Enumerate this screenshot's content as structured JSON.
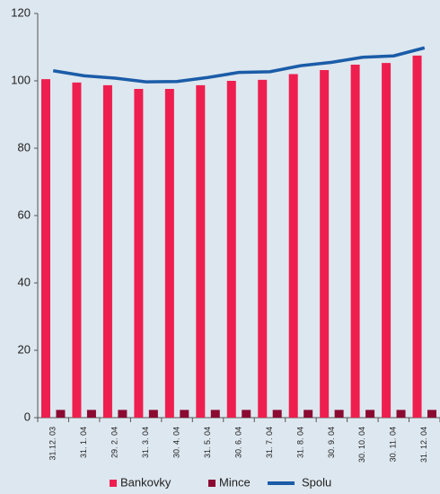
{
  "chart_data": {
    "type": "bar",
    "categories": [
      "31.12. 03",
      "31. 1. 04",
      "29. 2. 04",
      "31. 3. 04",
      "30. 4. 04",
      "31. 5. 04",
      "30. 6. 04",
      "31. 7. 04",
      "31. 8. 04",
      "30. 9. 04",
      "30. 10. 04",
      "30. 11. 04",
      "31. 12. 04"
    ],
    "series": [
      {
        "name": "Bankovky",
        "type": "bar",
        "color": "#ee1f4f",
        "values": [
          100.5,
          99.5,
          98.7,
          97.6,
          97.6,
          98.7,
          100,
          100.3,
          102,
          103.2,
          104.8,
          105.3,
          107.5
        ]
      },
      {
        "name": "Mince",
        "type": "bar",
        "color": "#8b0a32",
        "values": [
          2.3,
          2.3,
          2.3,
          2.3,
          2.3,
          2.3,
          2.3,
          2.3,
          2.3,
          2.3,
          2.3,
          2.3,
          2.3
        ]
      },
      {
        "name": "Spolu",
        "type": "line",
        "color": "#1a5ca8",
        "values": [
          103,
          101.5,
          100.8,
          99.7,
          99.8,
          101,
          102.5,
          102.7,
          104.5,
          105.5,
          107,
          107.4,
          109.8
        ]
      }
    ],
    "ylim": [
      0,
      120
    ],
    "yticks": [
      0,
      20,
      40,
      60,
      80,
      100,
      120
    ],
    "grid": false
  }
}
